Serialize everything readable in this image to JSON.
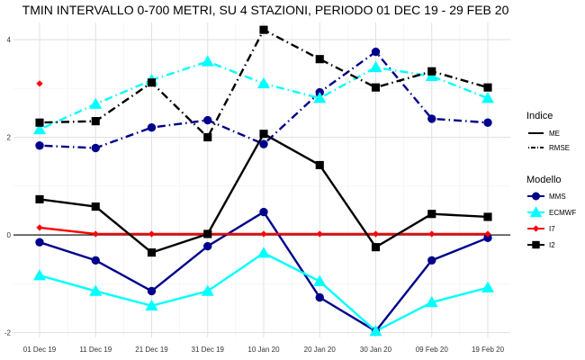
{
  "chart_data": {
    "type": "line",
    "title": "TMIN INTERVALLO 0-700 METRI, SU 4 STAZIONI, PERIODO 01 DEC 19  -  29 FEB 20",
    "xlabel": "",
    "ylabel": "",
    "categories": [
      "01 Dec 19",
      "11 Dec 19",
      "21 Dec 19",
      "31 Dec 19",
      "10 Jan 20",
      "20 Jan 20",
      "30 Jan 20",
      "09 Feb 20",
      "19 Feb 20"
    ],
    "ylim": [
      -2.1,
      4.35
    ],
    "yticks": [
      -2,
      0,
      2,
      4
    ],
    "grid": true,
    "legend_position": "right",
    "legend": {
      "indice_title": "Indice",
      "indice_items": [
        {
          "label": "ME",
          "dash": "solid"
        },
        {
          "label": "RMSE",
          "dash": "dotdash"
        }
      ],
      "modello_title": "Modello",
      "modello_items": [
        {
          "label": "MMS",
          "color": "#00008b",
          "marker": "circle"
        },
        {
          "label": "ECMWF",
          "color": "#00ffff",
          "marker": "triangle"
        },
        {
          "label": "I7",
          "color": "#ff0000",
          "marker": "diamond"
        },
        {
          "label": "I2",
          "color": "#000000",
          "marker": "square"
        }
      ]
    },
    "series": [
      {
        "model": "MMS",
        "indice": "RMSE",
        "color": "#00008b",
        "marker": "circle",
        "values": [
          1.83,
          1.78,
          2.2,
          2.35,
          1.86,
          2.92,
          3.75,
          2.38,
          2.3
        ]
      },
      {
        "model": "ECMWF",
        "indice": "RMSE",
        "color": "#00ffff",
        "marker": "triangle",
        "values": [
          2.16,
          2.68,
          3.17,
          3.55,
          3.1,
          2.8,
          3.43,
          3.25,
          2.8
        ]
      },
      {
        "model": "I7",
        "indice": "RMSE",
        "color": "#ff0000",
        "marker": "diamond",
        "values": [
          3.1,
          null,
          null,
          null,
          null,
          null,
          null,
          null,
          null
        ]
      },
      {
        "model": "I2",
        "indice": "RMSE",
        "color": "#000000",
        "marker": "square",
        "values": [
          2.3,
          2.33,
          3.12,
          2.0,
          4.2,
          3.6,
          3.02,
          3.35,
          3.02
        ]
      },
      {
        "model": "MMS",
        "indice": "ME",
        "color": "#00008b",
        "marker": "circle",
        "values": [
          -0.15,
          -0.52,
          -1.15,
          -0.23,
          0.47,
          -1.28,
          -1.97,
          -0.52,
          -0.06
        ]
      },
      {
        "model": "ECMWF",
        "indice": "ME",
        "color": "#00ffff",
        "marker": "triangle",
        "values": [
          -0.83,
          -1.15,
          -1.45,
          -1.15,
          -0.37,
          -0.95,
          -1.97,
          -1.38,
          -1.08
        ]
      },
      {
        "model": "I7",
        "indice": "ME",
        "color": "#ff0000",
        "marker": "diamond",
        "values": [
          0.15,
          0.02,
          0.02,
          0.02,
          0.02,
          0.02,
          0.02,
          0.02,
          0.02
        ]
      },
      {
        "model": "I2",
        "indice": "ME",
        "color": "#000000",
        "marker": "square",
        "values": [
          0.73,
          0.58,
          -0.36,
          0.02,
          2.07,
          1.43,
          -0.25,
          0.43,
          0.37
        ]
      }
    ]
  }
}
